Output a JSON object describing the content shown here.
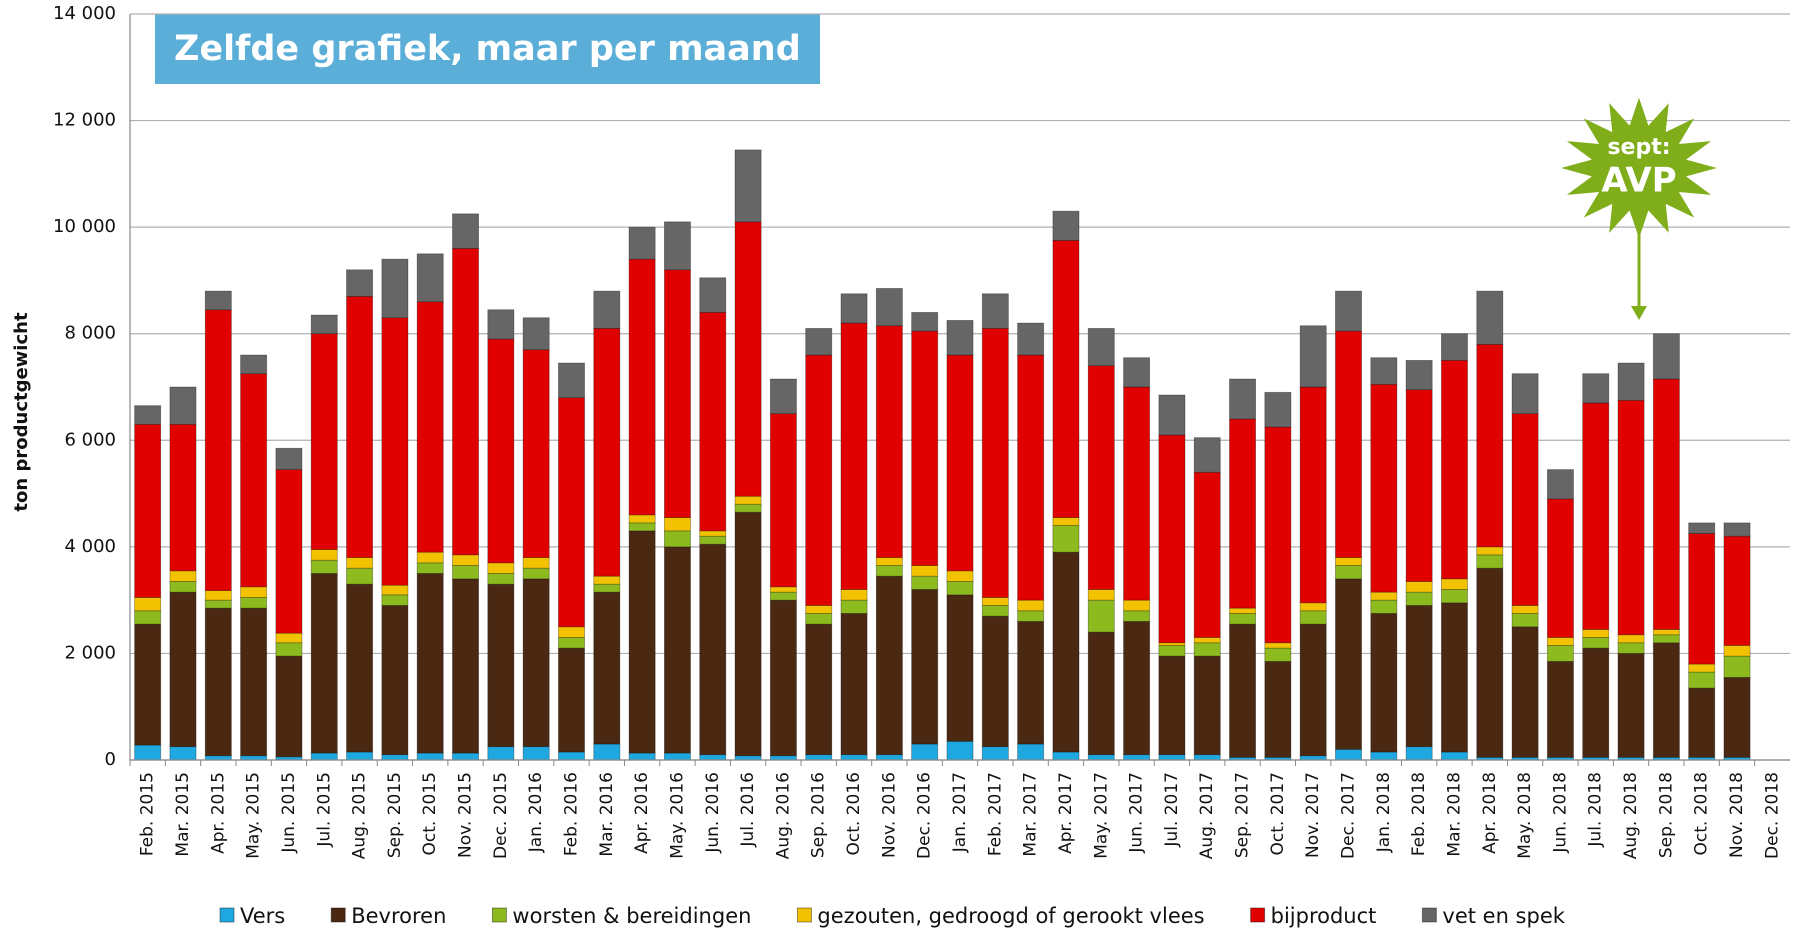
{
  "chart_data": {
    "type": "stacked_bar",
    "title": "Zelfde grafiek, maar per maand",
    "y_label": "ton productgewicht",
    "annotation": [
      "sept:",
      "AVP"
    ],
    "categories": [
      "Feb. 2015",
      "Mar. 2015",
      "Apr. 2015",
      "May. 2015",
      "Jun. 2015",
      "Jul. 2015",
      "Aug. 2015",
      "Sep. 2015",
      "Oct. 2015",
      "Nov. 2015",
      "Dec. 2015",
      "Jan. 2016",
      "Feb. 2016",
      "Mar. 2016",
      "Apr. 2016",
      "May. 2016",
      "Jun. 2016",
      "Jul. 2016",
      "Aug. 2016",
      "Sep. 2016",
      "Oct. 2016",
      "Nov. 2016",
      "Dec. 2016",
      "Jan. 2017",
      "Feb. 2017",
      "Mar. 2017",
      "Apr. 2017",
      "May. 2017",
      "Jun. 2017",
      "Jul. 2017",
      "Aug. 2017",
      "Sep. 2017",
      "Oct. 2017",
      "Nov. 2017",
      "Dec. 2017",
      "Jan. 2018",
      "Feb. 2018",
      "Mar. 2018",
      "Apr. 2018",
      "May. 2018",
      "Jun. 2018",
      "Jul. 2018",
      "Aug. 2018",
      "Sep. 2018",
      "Oct. 2018",
      "Nov. 2018",
      "Dec. 2018"
    ],
    "series": [
      {
        "name": "Vers",
        "color": "#1fa8e0",
        "values": [
          280,
          250,
          80,
          80,
          60,
          130,
          150,
          100,
          130,
          130,
          250,
          250,
          150,
          300,
          130,
          130,
          100,
          80,
          80,
          100,
          100,
          100,
          300,
          350,
          250,
          300,
          150,
          100,
          100,
          100,
          100,
          50,
          50,
          80,
          200,
          150,
          250,
          150,
          50,
          50,
          50,
          50,
          50,
          50,
          50,
          50,
          null
        ]
      },
      {
        "name": "Bevroren",
        "color": "#4a2812",
        "values": [
          2270,
          2900,
          2770,
          2770,
          1890,
          3370,
          3150,
          2800,
          3370,
          3270,
          3050,
          3150,
          1950,
          2850,
          4170,
          3870,
          3950,
          4570,
          2920,
          2450,
          2650,
          3350,
          2900,
          2750,
          2450,
          2300,
          3750,
          2300,
          2500,
          1850,
          1850,
          2500,
          1800,
          2470,
          3200,
          2600,
          2650,
          2800,
          3550,
          2450,
          1800,
          2050,
          1950,
          2150,
          1300,
          1500,
          null
        ]
      },
      {
        "name": "worsten & bereidingen",
        "color": "#8dba1e",
        "values": [
          250,
          200,
          150,
          200,
          250,
          250,
          300,
          200,
          200,
          250,
          200,
          200,
          200,
          150,
          150,
          300,
          150,
          150,
          150,
          200,
          250,
          200,
          250,
          250,
          200,
          200,
          500,
          600,
          200,
          200,
          250,
          200,
          250,
          250,
          250,
          250,
          250,
          250,
          250,
          250,
          300,
          200,
          200,
          150,
          300,
          400,
          null
        ]
      },
      {
        "name": "gezouten, gedroogd of gerookt vlees",
        "color": "#f2c200",
        "values": [
          250,
          200,
          180,
          200,
          180,
          200,
          200,
          180,
          200,
          200,
          200,
          200,
          200,
          150,
          150,
          250,
          100,
          150,
          100,
          150,
          200,
          150,
          200,
          200,
          150,
          200,
          150,
          200,
          200,
          50,
          100,
          100,
          100,
          150,
          150,
          150,
          200,
          200,
          150,
          150,
          150,
          150,
          150,
          100,
          150,
          200,
          null
        ]
      },
      {
        "name": "bijproduct",
        "color": "#e00000",
        "values": [
          3250,
          2750,
          5270,
          4000,
          3070,
          4050,
          4900,
          5020,
          4700,
          5750,
          4200,
          3900,
          4300,
          4650,
          4800,
          4650,
          4100,
          5150,
          3250,
          4700,
          5000,
          4350,
          4400,
          4050,
          5050,
          4600,
          5200,
          4200,
          4000,
          3900,
          3100,
          3550,
          4050,
          4050,
          4250,
          3900,
          3600,
          4100,
          3800,
          3600,
          2600,
          4250,
          4400,
          4700,
          2450,
          2050,
          null
        ]
      },
      {
        "name": "vet en spek",
        "color": "#666666",
        "values": [
          350,
          700,
          350,
          350,
          400,
          350,
          500,
          1100,
          900,
          650,
          550,
          600,
          650,
          700,
          600,
          900,
          650,
          1350,
          650,
          500,
          550,
          700,
          350,
          650,
          650,
          600,
          550,
          700,
          550,
          750,
          650,
          750,
          650,
          1150,
          750,
          500,
          550,
          500,
          1000,
          750,
          550,
          550,
          700,
          850,
          200,
          250,
          null
        ]
      }
    ],
    "ylim": [
      0,
      14000
    ],
    "yticks": [
      0,
      {
        "value": 2000,
        "label": "2 000"
      },
      {
        "value": 4000,
        "label": "4 000"
      },
      {
        "value": 6000,
        "label": "6 000"
      },
      {
        "value": 8000,
        "label": "8 000"
      },
      {
        "value": 10000,
        "label": "10 000"
      },
      {
        "value": 12000,
        "label": "12 000"
      },
      {
        "value": 14000,
        "label": "14 000"
      }
    ],
    "grid": true
  }
}
